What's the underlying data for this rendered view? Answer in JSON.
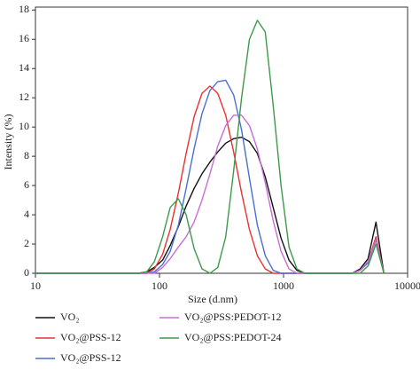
{
  "chart_data": {
    "type": "line",
    "x_label": "Size (d.nm)",
    "y_label": "Intensity (%)",
    "log_x": true,
    "xlim": [
      10,
      10000
    ],
    "xticks": [
      10,
      100,
      1000,
      10000
    ],
    "ylim": [
      0,
      18.2
    ],
    "yticks": [
      0,
      2,
      4,
      6,
      8,
      10,
      12,
      14,
      16,
      18
    ],
    "grid": false,
    "x": [
      10,
      68,
      79,
      91,
      106,
      122,
      142,
      164,
      190,
      220,
      255,
      295,
      342,
      396,
      459,
      531,
      615,
      712,
      825,
      955,
      1106,
      1281,
      1484,
      3000,
      3580,
      4145,
      4801,
      5560,
      6439
    ],
    "series": [
      {
        "name": "VO₂",
        "color": "#111111",
        "values": [
          0,
          0,
          0.1,
          0.4,
          0.9,
          1.9,
          3.2,
          4.6,
          5.8,
          6.8,
          7.6,
          8.3,
          8.9,
          9.2,
          9.3,
          9.0,
          8.2,
          6.6,
          4.5,
          2.4,
          0.9,
          0.2,
          0,
          0,
          0,
          0.3,
          1.0,
          3.5,
          0
        ]
      },
      {
        "name": "VO₂@PSS-12",
        "color": "#e8312f",
        "values": [
          0,
          0,
          0,
          0.3,
          1.3,
          3.0,
          5.5,
          8.2,
          10.7,
          12.3,
          12.8,
          12.3,
          10.8,
          8.3,
          5.5,
          3.0,
          1.2,
          0.3,
          0,
          0,
          0,
          0,
          0,
          0,
          0,
          0.2,
          0.8,
          2.5,
          0
        ]
      },
      {
        "name": "VO₂@PSS-12",
        "color": "#4a6fd1",
        "values": [
          0,
          0,
          0,
          0.1,
          0.6,
          1.5,
          3.3,
          5.8,
          8.5,
          10.9,
          12.5,
          13.1,
          13.2,
          12.2,
          9.8,
          6.5,
          3.3,
          1.2,
          0.2,
          0,
          0,
          0,
          0,
          0,
          0,
          0.2,
          0.7,
          2.3,
          0
        ]
      },
      {
        "name": "VO₂@PSS:PEDOT-12",
        "color": "#c86dd7",
        "values": [
          0,
          0,
          0,
          0,
          0.4,
          1.0,
          1.8,
          2.5,
          3.5,
          5.0,
          6.8,
          8.7,
          10.1,
          10.8,
          10.8,
          10.1,
          8.5,
          6.2,
          3.6,
          1.5,
          0.3,
          0,
          0,
          0,
          0,
          0.2,
          0.8,
          2.3,
          0
        ]
      },
      {
        "name": "VO₂@PSS:PEDOT-24",
        "color": "#3c9a4a",
        "values": [
          0,
          0,
          0.1,
          0.8,
          2.5,
          4.5,
          5.1,
          4.0,
          1.7,
          0.3,
          0,
          0.4,
          2.5,
          7.0,
          12.0,
          16.0,
          17.3,
          16.5,
          11.5,
          6.0,
          1.8,
          0.3,
          0,
          0,
          0,
          0,
          0.5,
          2.0,
          0
        ]
      }
    ]
  }
}
